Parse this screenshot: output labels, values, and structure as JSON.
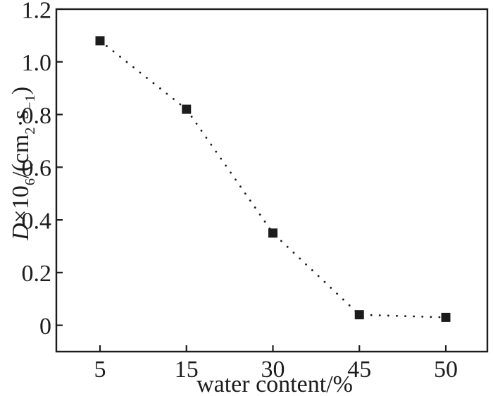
{
  "figure": {
    "background": "#ffffff",
    "ink_color": "#1c1c1c"
  },
  "chart_data": {
    "type": "line",
    "subtype": "dotted-line-with-filled-square-markers",
    "title": "",
    "categories": [
      "5",
      "15",
      "30",
      "45",
      "50"
    ],
    "x_values": [
      5,
      15,
      30,
      45,
      50
    ],
    "series": [
      {
        "name": "D×10⁶/(cm²·s⁻¹)",
        "values": [
          1.08,
          0.82,
          0.35,
          0.04,
          0.03
        ],
        "marker": "filled-square",
        "line_style": "dotted",
        "color": "#1c1c1c"
      }
    ],
    "xlabel": "water content/%",
    "ylabel": "D×10⁶/(cm²·s⁻¹)",
    "x_tick_labels": [
      "5",
      "15",
      "30",
      "45",
      "50"
    ],
    "y_tick_labels": [
      "0",
      "0.2",
      "0.4",
      "0.6",
      "0.8",
      "1.0",
      "1.2"
    ],
    "y_tick_values": [
      0,
      0.2,
      0.4,
      0.6,
      0.8,
      1.0,
      1.2
    ],
    "ylim": [
      -0.1,
      1.2
    ],
    "x_axis_spacing": "categorical-even",
    "grid": false,
    "legend": "none"
  },
  "ylabel_parts": [
    {
      "text": "D",
      "style": "italic"
    },
    {
      "text": "×10",
      "style": "normal"
    },
    {
      "text": "6",
      "style": "sup"
    },
    {
      "text": "/(cm",
      "style": "normal"
    },
    {
      "text": "2",
      "style": "sup"
    },
    {
      "text": "·s",
      "style": "normal"
    },
    {
      "text": "−1",
      "style": "sup"
    },
    {
      "text": ")",
      "style": "normal"
    }
  ]
}
